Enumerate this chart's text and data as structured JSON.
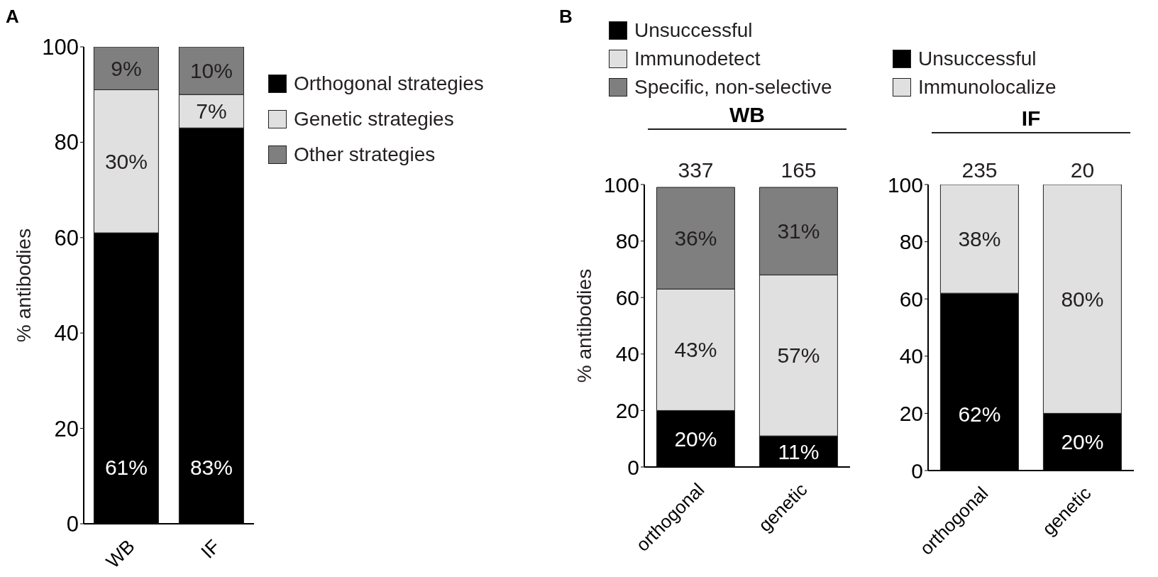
{
  "chart_data": [
    {
      "type": "bar",
      "stacked": true,
      "categories": [
        "WB",
        "IF"
      ],
      "ylabel": "% antibodies",
      "ylim": [
        0,
        100
      ],
      "yticks": [
        0,
        20,
        40,
        60,
        80,
        100
      ],
      "legend": "right",
      "annotations": [
        "A"
      ],
      "series": [
        {
          "name": "Orthogonal strategies",
          "color": "#000000",
          "values": [
            61,
            83
          ],
          "value_labels": [
            "61%",
            "83%"
          ]
        },
        {
          "name": "Genetic strategies",
          "color": "#e0e0e0",
          "values": [
            30,
            7
          ],
          "value_labels": [
            "30%",
            "7%"
          ]
        },
        {
          "name": "Other strategies",
          "color": "#7f7f7f",
          "values": [
            9,
            10
          ],
          "value_labels": [
            "9%",
            "10%"
          ]
        }
      ]
    },
    {
      "type": "bar",
      "stacked": true,
      "title": "WB",
      "categories": [
        "orthogonal",
        "genetic"
      ],
      "ylabel": "% antibodies",
      "ylim": [
        0,
        100
      ],
      "yticks": [
        0,
        20,
        40,
        60,
        80,
        100
      ],
      "legend": "top",
      "annotations": [
        "B",
        {
          "text": "337",
          "x": "orthogonal",
          "y": 100
        },
        {
          "text": "165",
          "x": "genetic",
          "y": 100
        }
      ],
      "series": [
        {
          "name": "Unsuccessful",
          "color": "#000000",
          "values": [
            20,
            11
          ],
          "value_labels": [
            "20%",
            "11%"
          ]
        },
        {
          "name": "Immunodetect",
          "color": "#e0e0e0",
          "values": [
            43,
            57
          ],
          "value_labels": [
            "43%",
            "57%"
          ]
        },
        {
          "name": "Specific, non-selective",
          "color": "#7f7f7f",
          "values": [
            36,
            31
          ],
          "value_labels": [
            "36%",
            "31%"
          ]
        }
      ]
    },
    {
      "type": "bar",
      "stacked": true,
      "title": "IF",
      "categories": [
        "orthogonal",
        "genetic"
      ],
      "ylim": [
        0,
        100
      ],
      "yticks": [
        0,
        20,
        40,
        60,
        80,
        100
      ],
      "legend": "top",
      "annotations": [
        {
          "text": "235",
          "x": "orthogonal",
          "y": 100
        },
        {
          "text": "20",
          "x": "genetic",
          "y": 100
        }
      ],
      "series": [
        {
          "name": "Unsuccessful",
          "color": "#000000",
          "values": [
            62,
            20
          ],
          "value_labels": [
            "62%",
            "20%"
          ]
        },
        {
          "name": "Immunolocalize",
          "color": "#e0e0e0",
          "values": [
            38,
            80
          ],
          "value_labels": [
            "38%",
            "80%"
          ]
        }
      ]
    }
  ]
}
